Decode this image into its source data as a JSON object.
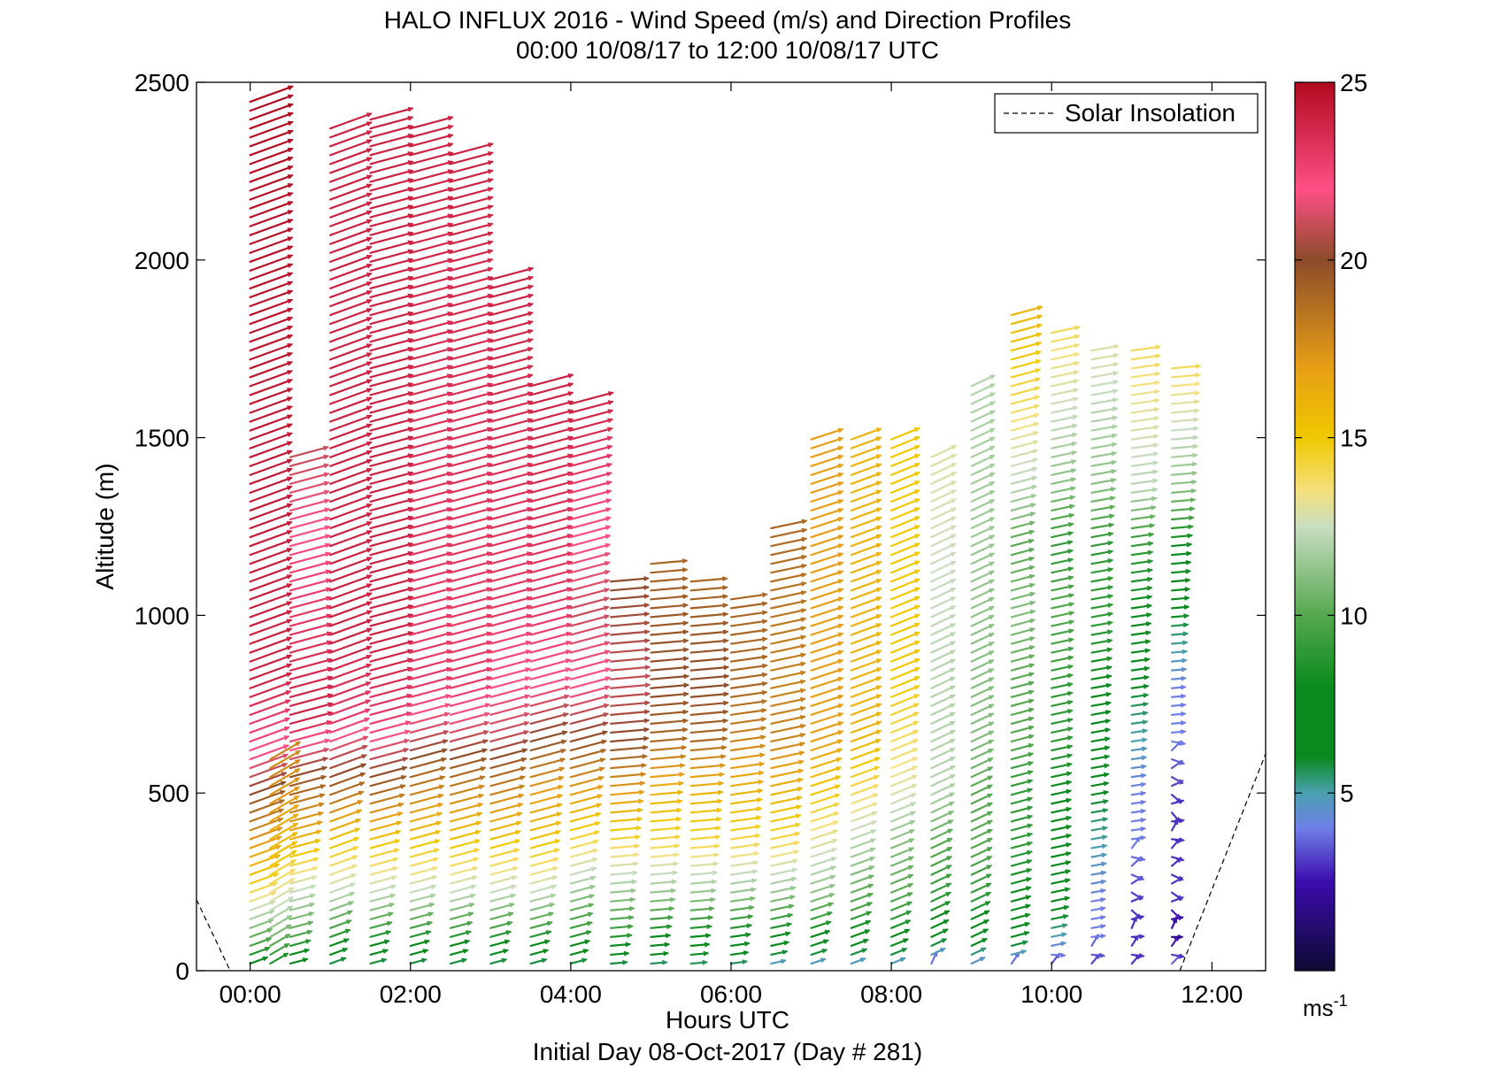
{
  "chart_data": {
    "type": "quiver",
    "title": "HALO INFLUX 2016 - Wind Speed (m/s) and Direction Profiles",
    "subtitle": "00:00 10/08/17 to 12:00 10/08/17  UTC",
    "xlabel": "Hours UTC",
    "ylabel": "Altitude (m)",
    "footer": "Initial Day 08-Oct-2017 (Day # 281)",
    "xlim": [
      -0.67,
      12.67
    ],
    "ylim": [
      0,
      2500
    ],
    "x_ticks": [
      0,
      2,
      4,
      6,
      8,
      10,
      12
    ],
    "x_tick_labels": [
      "00:00",
      "02:00",
      "04:00",
      "06:00",
      "08:00",
      "10:00",
      "12:00"
    ],
    "y_ticks": [
      0,
      500,
      1000,
      1500,
      2000,
      2500
    ],
    "y_tick_labels": [
      "0",
      "500",
      "1000",
      "1500",
      "2000",
      "2500"
    ],
    "grid": false,
    "legend": {
      "position": "top-right",
      "entries": [
        {
          "label": "Solar Insolation",
          "style": "dashed",
          "color": "#000000"
        }
      ]
    },
    "colorbar": {
      "range": [
        0,
        25
      ],
      "ticks": [
        5,
        10,
        15,
        20,
        25
      ],
      "tick_labels": [
        "5",
        "10",
        "15",
        "20",
        "25"
      ],
      "unit": "ms-1",
      "stops": [
        {
          "v": 0,
          "color": "#0d0a33"
        },
        {
          "v": 2.5,
          "color": "#3c0cae"
        },
        {
          "v": 4,
          "color": "#6f7fe6"
        },
        {
          "v": 5,
          "color": "#4aa0b0"
        },
        {
          "v": 6,
          "color": "#0a8a1e"
        },
        {
          "v": 8,
          "color": "#0a8a1e"
        },
        {
          "v": 10,
          "color": "#55a84f"
        },
        {
          "v": 12.5,
          "color": "#c9ddc1"
        },
        {
          "v": 13.5,
          "color": "#f4e07e"
        },
        {
          "v": 15,
          "color": "#f0c800"
        },
        {
          "v": 17,
          "color": "#e69e16"
        },
        {
          "v": 20,
          "color": "#8c4b2a"
        },
        {
          "v": 22,
          "color": "#ff4f86"
        },
        {
          "v": 25,
          "color": "#b00a1e"
        }
      ]
    },
    "wind_profiles": [
      {
        "hour": 0.0,
        "alt_top": 2450,
        "dir": 250,
        "speed_profile": [
          [
            0,
            6
          ],
          [
            50,
            9
          ],
          [
            150,
            12
          ],
          [
            250,
            15
          ],
          [
            400,
            18
          ],
          [
            500,
            20
          ],
          [
            600,
            22
          ],
          [
            800,
            24
          ],
          [
            2450,
            25
          ]
        ]
      },
      {
        "hour": 0.25,
        "alt_top": 600,
        "dir": 240,
        "speed_profile": [
          [
            0,
            8
          ],
          [
            100,
            11
          ],
          [
            200,
            13
          ],
          [
            300,
            15
          ],
          [
            450,
            17
          ],
          [
            600,
            18
          ]
        ]
      },
      {
        "hour": 0.5,
        "alt_top": 1450,
        "dir": 255,
        "speed_profile": [
          [
            0,
            6
          ],
          [
            100,
            10
          ],
          [
            250,
            13
          ],
          [
            400,
            17
          ],
          [
            550,
            20
          ],
          [
            700,
            24
          ],
          [
            1000,
            23
          ],
          [
            1450,
            21
          ]
        ]
      },
      {
        "hour": 1.0,
        "alt_top": 2380,
        "dir": 250,
        "speed_profile": [
          [
            0,
            5
          ],
          [
            100,
            9
          ],
          [
            200,
            12
          ],
          [
            350,
            15
          ],
          [
            500,
            19
          ],
          [
            700,
            23
          ],
          [
            900,
            24
          ],
          [
            2380,
            24
          ]
        ]
      },
      {
        "hour": 1.5,
        "alt_top": 2400,
        "dir": 255,
        "speed_profile": [
          [
            0,
            5
          ],
          [
            100,
            9
          ],
          [
            200,
            12
          ],
          [
            350,
            15
          ],
          [
            500,
            19
          ],
          [
            700,
            23
          ],
          [
            900,
            24
          ],
          [
            2400,
            24
          ]
        ]
      },
      {
        "hour": 2.0,
        "alt_top": 2370,
        "dir": 255,
        "speed_profile": [
          [
            0,
            5
          ],
          [
            100,
            9
          ],
          [
            200,
            12
          ],
          [
            350,
            15
          ],
          [
            500,
            18
          ],
          [
            650,
            21
          ],
          [
            800,
            23
          ],
          [
            1000,
            23
          ],
          [
            2370,
            24
          ]
        ]
      },
      {
        "hour": 2.5,
        "alt_top": 2300,
        "dir": 255,
        "speed_profile": [
          [
            0,
            5
          ],
          [
            100,
            9
          ],
          [
            200,
            12
          ],
          [
            350,
            15
          ],
          [
            500,
            18
          ],
          [
            650,
            21
          ],
          [
            800,
            23
          ],
          [
            1000,
            23
          ],
          [
            2300,
            24
          ]
        ]
      },
      {
        "hour": 3.0,
        "alt_top": 1950,
        "dir": 255,
        "speed_profile": [
          [
            0,
            5
          ],
          [
            100,
            9
          ],
          [
            200,
            12
          ],
          [
            350,
            15
          ],
          [
            500,
            18
          ],
          [
            650,
            21
          ],
          [
            800,
            22
          ],
          [
            1000,
            23
          ],
          [
            1950,
            24
          ]
        ]
      },
      {
        "hour": 3.5,
        "alt_top": 1650,
        "dir": 255,
        "speed_profile": [
          [
            0,
            5
          ],
          [
            100,
            9
          ],
          [
            200,
            12
          ],
          [
            350,
            15
          ],
          [
            500,
            17
          ],
          [
            650,
            20
          ],
          [
            800,
            22
          ],
          [
            1000,
            23
          ],
          [
            1650,
            24
          ]
        ]
      },
      {
        "hour": 4.0,
        "alt_top": 1600,
        "dir": 255,
        "speed_profile": [
          [
            0,
            5
          ],
          [
            100,
            9
          ],
          [
            200,
            11
          ],
          [
            350,
            14
          ],
          [
            500,
            17
          ],
          [
            650,
            20
          ],
          [
            800,
            22
          ],
          [
            1000,
            21
          ],
          [
            1600,
            24
          ]
        ]
      },
      {
        "hour": 4.5,
        "alt_top": 1100,
        "dir": 265,
        "speed_profile": [
          [
            0,
            5
          ],
          [
            100,
            9
          ],
          [
            200,
            11
          ],
          [
            350,
            14
          ],
          [
            500,
            17
          ],
          [
            650,
            20
          ],
          [
            800,
            21
          ],
          [
            1100,
            20
          ]
        ]
      },
      {
        "hour": 5.0,
        "alt_top": 1150,
        "dir": 265,
        "speed_profile": [
          [
            0,
            5
          ],
          [
            100,
            8
          ],
          [
            200,
            11
          ],
          [
            350,
            14
          ],
          [
            500,
            16
          ],
          [
            650,
            19
          ],
          [
            800,
            20
          ],
          [
            1150,
            19
          ]
        ]
      },
      {
        "hour": 5.5,
        "alt_top": 1100,
        "dir": 265,
        "speed_profile": [
          [
            0,
            5
          ],
          [
            100,
            8
          ],
          [
            200,
            11
          ],
          [
            350,
            14
          ],
          [
            500,
            16
          ],
          [
            650,
            19
          ],
          [
            800,
            20
          ],
          [
            1100,
            19
          ]
        ]
      },
      {
        "hour": 6.0,
        "alt_top": 1050,
        "dir": 262,
        "speed_profile": [
          [
            0,
            5
          ],
          [
            100,
            8
          ],
          [
            200,
            11
          ],
          [
            350,
            14
          ],
          [
            500,
            16
          ],
          [
            650,
            18
          ],
          [
            800,
            19
          ],
          [
            1050,
            19
          ]
        ]
      },
      {
        "hour": 6.5,
        "alt_top": 1250,
        "dir": 258,
        "speed_profile": [
          [
            0,
            4
          ],
          [
            100,
            8
          ],
          [
            200,
            11
          ],
          [
            350,
            14
          ],
          [
            500,
            16
          ],
          [
            650,
            18
          ],
          [
            800,
            18
          ],
          [
            1250,
            19
          ]
        ]
      },
      {
        "hour": 7.0,
        "alt_top": 1500,
        "dir": 252,
        "speed_profile": [
          [
            0,
            4
          ],
          [
            100,
            8
          ],
          [
            200,
            11
          ],
          [
            350,
            13
          ],
          [
            500,
            15
          ],
          [
            650,
            17
          ],
          [
            800,
            17
          ],
          [
            1500,
            17
          ]
        ]
      },
      {
        "hour": 7.5,
        "alt_top": 1500,
        "dir": 250,
        "speed_profile": [
          [
            0,
            4
          ],
          [
            100,
            8
          ],
          [
            200,
            10
          ],
          [
            350,
            12
          ],
          [
            500,
            14
          ],
          [
            650,
            16
          ],
          [
            800,
            16
          ],
          [
            1500,
            16
          ]
        ]
      },
      {
        "hour": 8.0,
        "alt_top": 1500,
        "dir": 248,
        "speed_profile": [
          [
            0,
            4
          ],
          [
            100,
            8
          ],
          [
            200,
            10
          ],
          [
            350,
            11
          ],
          [
            500,
            13
          ],
          [
            650,
            14
          ],
          [
            800,
            15
          ],
          [
            1500,
            15
          ]
        ]
      },
      {
        "hour": 8.5,
        "alt_top": 1450,
        "dir": 245,
        "speed_profile": [
          [
            0,
            3
          ],
          [
            100,
            7
          ],
          [
            200,
            9
          ],
          [
            350,
            10
          ],
          [
            500,
            12
          ],
          [
            650,
            12
          ],
          [
            800,
            12
          ],
          [
            1450,
            13
          ]
        ]
      },
      {
        "hour": 9.0,
        "alt_top": 1650,
        "dir": 245,
        "speed_profile": [
          [
            0,
            4
          ],
          [
            100,
            7
          ],
          [
            200,
            9
          ],
          [
            350,
            10
          ],
          [
            500,
            10
          ],
          [
            650,
            11
          ],
          [
            800,
            11
          ],
          [
            1650,
            12
          ]
        ]
      },
      {
        "hour": 9.5,
        "alt_top": 1850,
        "dir": 255,
        "speed_profile": [
          [
            0,
            3
          ],
          [
            100,
            7
          ],
          [
            200,
            8
          ],
          [
            350,
            9
          ],
          [
            500,
            9
          ],
          [
            650,
            10
          ],
          [
            800,
            10
          ],
          [
            1000,
            11
          ],
          [
            1200,
            10
          ],
          [
            1350,
            12
          ],
          [
            1850,
            16
          ]
        ]
      },
      {
        "hour": 10.0,
        "alt_top": 1800,
        "dir": 258,
        "speed_profile": [
          [
            0,
            3
          ],
          [
            100,
            5
          ],
          [
            200,
            7
          ],
          [
            350,
            8
          ],
          [
            500,
            8
          ],
          [
            650,
            9
          ],
          [
            800,
            9
          ],
          [
            1000,
            10
          ],
          [
            1200,
            9
          ],
          [
            1350,
            11
          ],
          [
            1800,
            14
          ]
        ]
      },
      {
        "hour": 10.5,
        "alt_top": 1750,
        "dir": 260,
        "speed_profile": [
          [
            0,
            3
          ],
          [
            100,
            4
          ],
          [
            200,
            4
          ],
          [
            350,
            5
          ],
          [
            500,
            6
          ],
          [
            650,
            7
          ],
          [
            800,
            8
          ],
          [
            1000,
            9
          ],
          [
            1200,
            9
          ],
          [
            1350,
            11
          ],
          [
            1750,
            13
          ]
        ]
      },
      {
        "hour": 11.0,
        "alt_top": 1750,
        "dir": 262,
        "speed_profile": [
          [
            0,
            3
          ],
          [
            100,
            3
          ],
          [
            200,
            3
          ],
          [
            350,
            4
          ],
          [
            500,
            4
          ],
          [
            650,
            5
          ],
          [
            800,
            6
          ],
          [
            1000,
            8
          ],
          [
            1200,
            9
          ],
          [
            1350,
            12
          ],
          [
            1750,
            14
          ]
        ]
      },
      {
        "hour": 11.5,
        "alt_top": 1700,
        "dir": 265,
        "speed_profile": [
          [
            0,
            4
          ],
          [
            100,
            2
          ],
          [
            200,
            3
          ],
          [
            350,
            3
          ],
          [
            500,
            3
          ],
          [
            650,
            4
          ],
          [
            800,
            4
          ],
          [
            1000,
            6
          ],
          [
            1200,
            8
          ],
          [
            1350,
            11
          ],
          [
            1700,
            14
          ]
        ]
      }
    ],
    "solar_insolation": [
      {
        "x": [
          -0.67,
          -0.25
        ],
        "y": [
          200,
          0
        ]
      },
      {
        "x": [
          11.6,
          12.67
        ],
        "y": [
          0,
          610
        ]
      }
    ]
  }
}
